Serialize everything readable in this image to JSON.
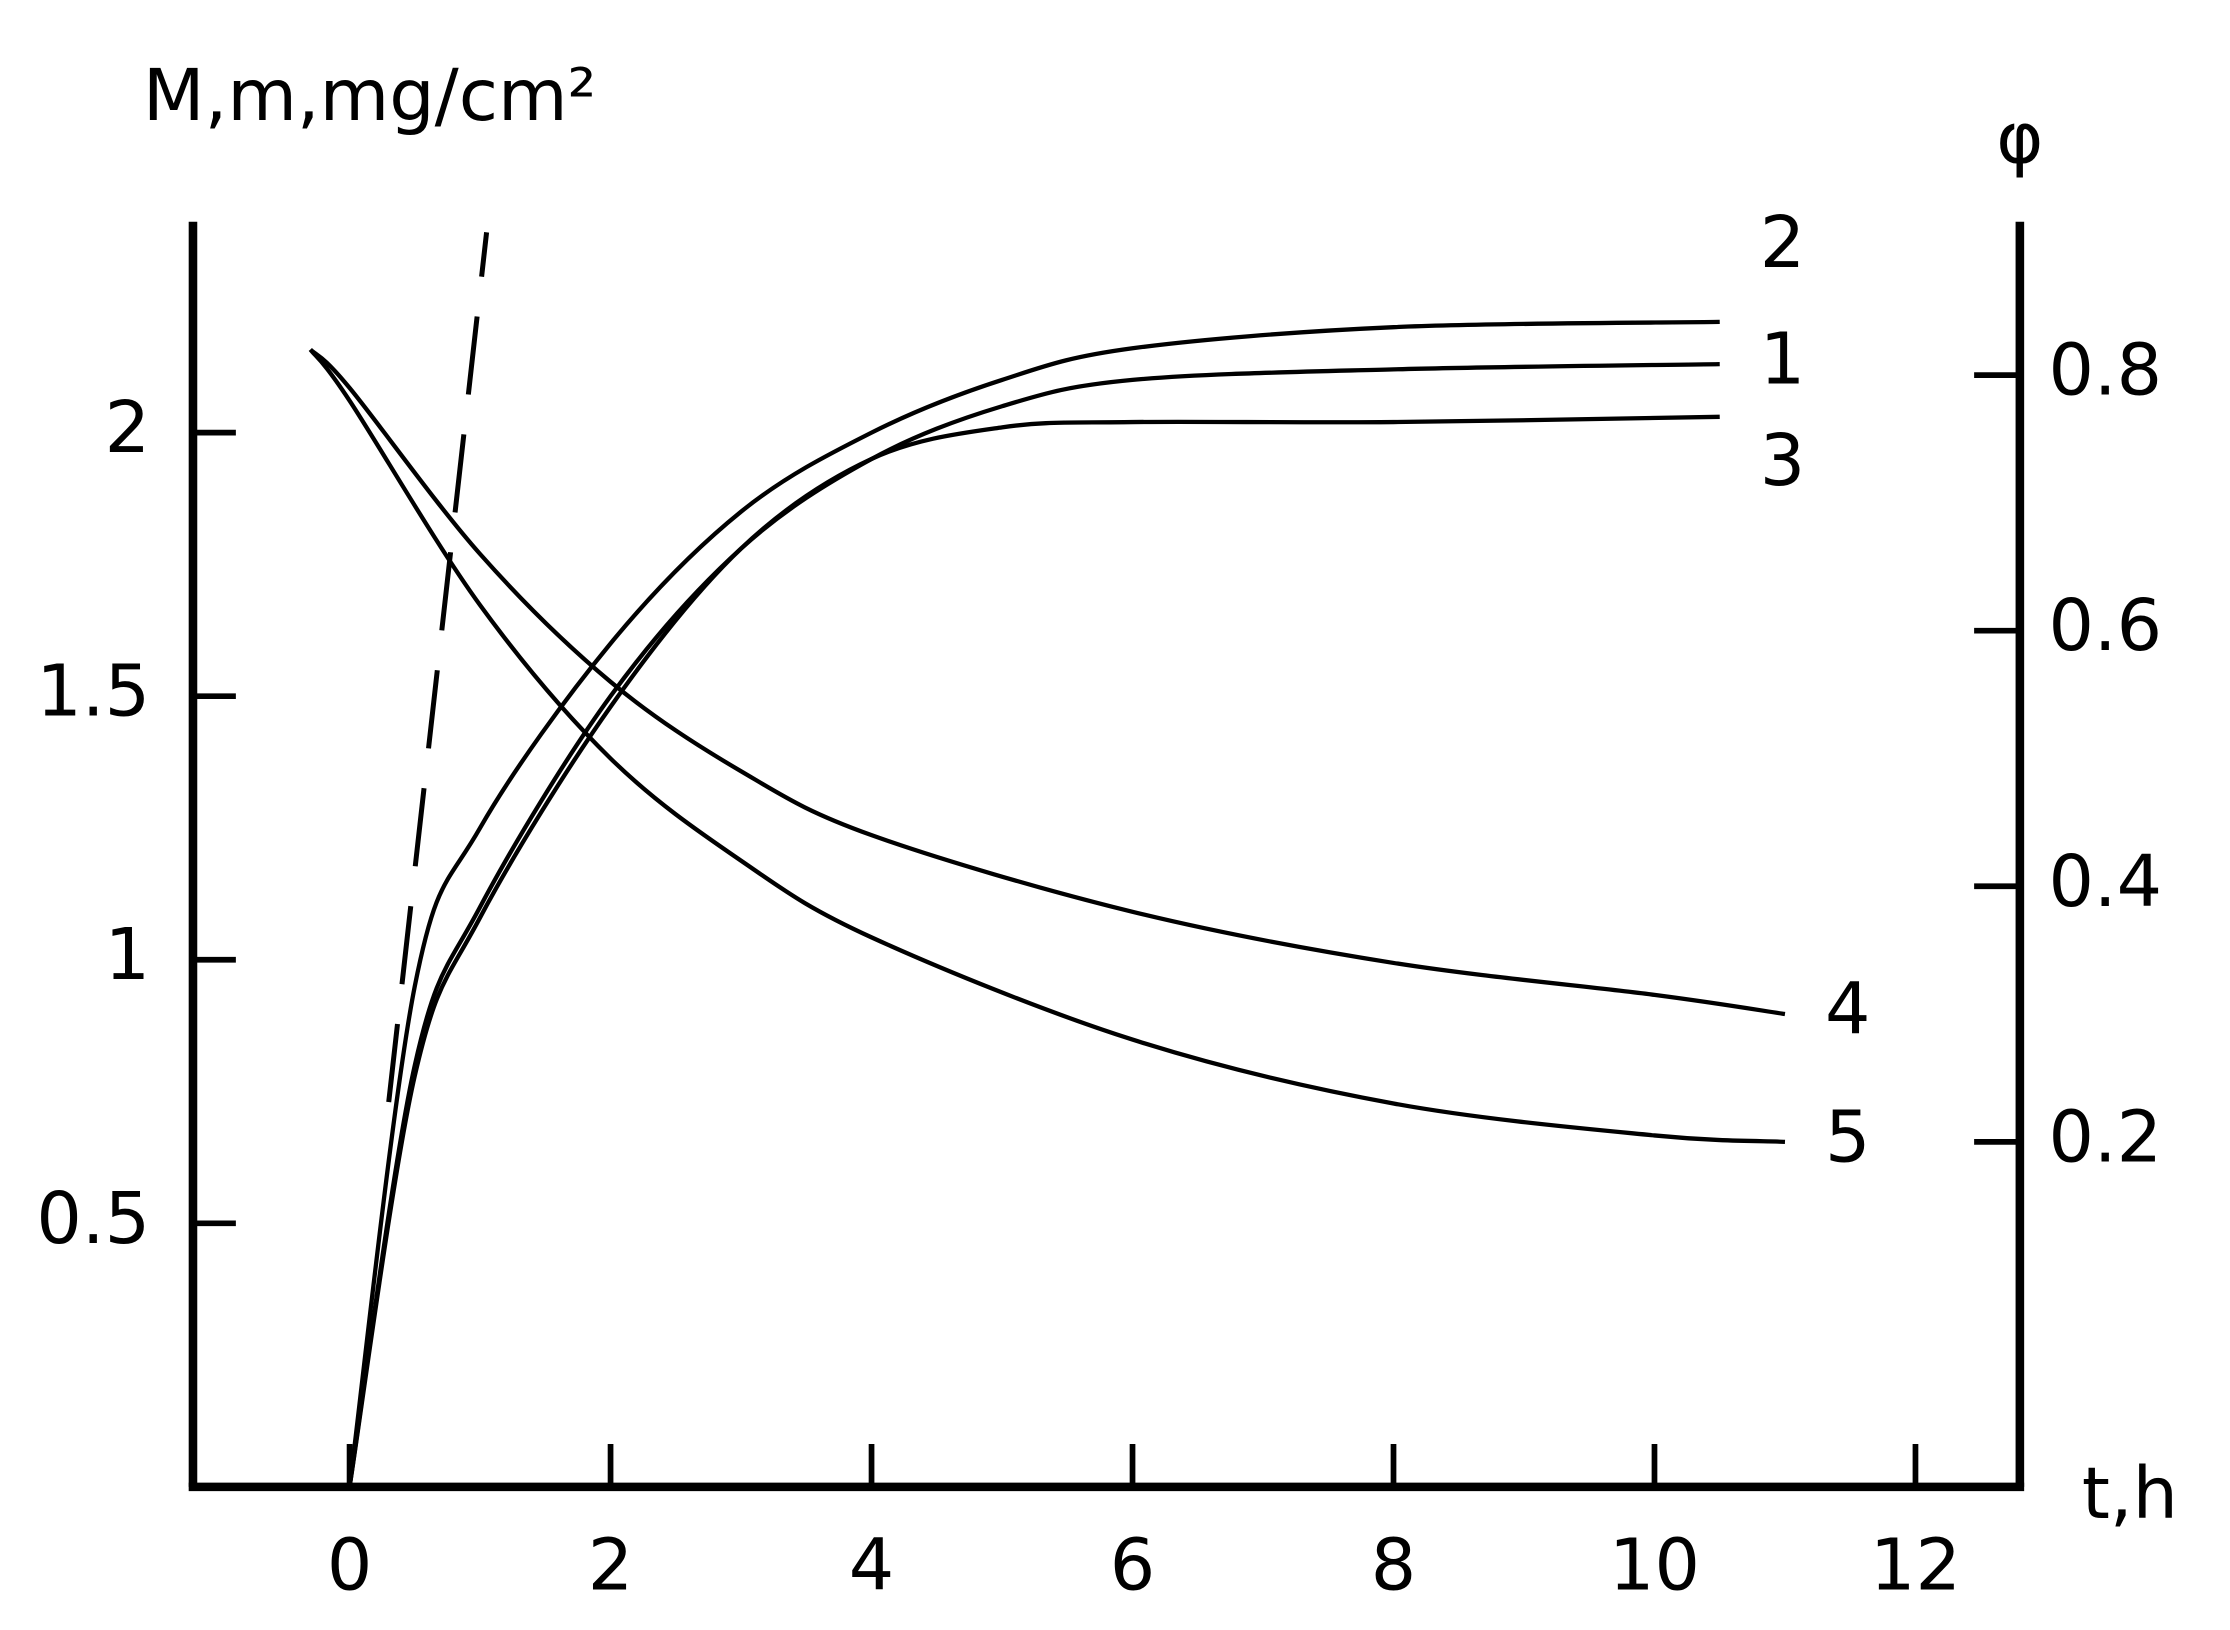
{
  "chart_data": {
    "type": "line",
    "y_label": "M,m,mg/cm²",
    "y2_label": "φ",
    "x_label": "t,h",
    "xlim": [
      -1.2,
      12.8
    ],
    "xticks": [
      0,
      2,
      4,
      6,
      8,
      10,
      12
    ],
    "ylim": [
      0,
      2.4
    ],
    "yticks": [
      0.5,
      1,
      1.5,
      2
    ],
    "y2lim": [
      -0.07,
      0.92
    ],
    "y2ticks": [
      0.2,
      0.4,
      0.6,
      0.8
    ],
    "color": "#000000",
    "series": [
      {
        "name": "1",
        "x": [
          0,
          0.5,
          1,
          2,
          3,
          4,
          5,
          6,
          8,
          10.5
        ],
        "values": [
          0,
          0.8,
          1.1,
          1.5,
          1.78,
          1.95,
          2.05,
          2.1,
          2.12,
          2.13
        ]
      },
      {
        "name": "2",
        "x": [
          0,
          0.5,
          1,
          2,
          3,
          4,
          5,
          6,
          8,
          10.5
        ],
        "values": [
          0,
          0.95,
          1.25,
          1.6,
          1.85,
          2.0,
          2.1,
          2.16,
          2.2,
          2.21
        ]
      },
      {
        "name": "3",
        "x": [
          0,
          0.5,
          1,
          2,
          3,
          4,
          5,
          6,
          8,
          10.5
        ],
        "values": [
          0,
          0.78,
          1.08,
          1.48,
          1.78,
          1.95,
          2.01,
          2.02,
          2.02,
          2.03
        ]
      },
      {
        "name": "4",
        "axis": "y2",
        "x": [
          -0.3,
          0,
          1,
          2,
          3,
          4,
          6,
          8,
          10,
          11
        ],
        "values": [
          0.82,
          0.79,
          0.66,
          0.56,
          0.49,
          0.44,
          0.38,
          0.34,
          0.315,
          0.3
        ]
      },
      {
        "name": "5",
        "axis": "y2",
        "x": [
          -0.3,
          0,
          1,
          2,
          3,
          4,
          6,
          8,
          10,
          11
        ],
        "values": [
          0.82,
          0.78,
          0.62,
          0.5,
          0.42,
          0.36,
          0.28,
          0.23,
          0.205,
          0.2
        ]
      },
      {
        "dashed": true,
        "x": [
          0.3,
          1.05
        ],
        "values": [
          0.73,
          2.38
        ]
      }
    ]
  }
}
